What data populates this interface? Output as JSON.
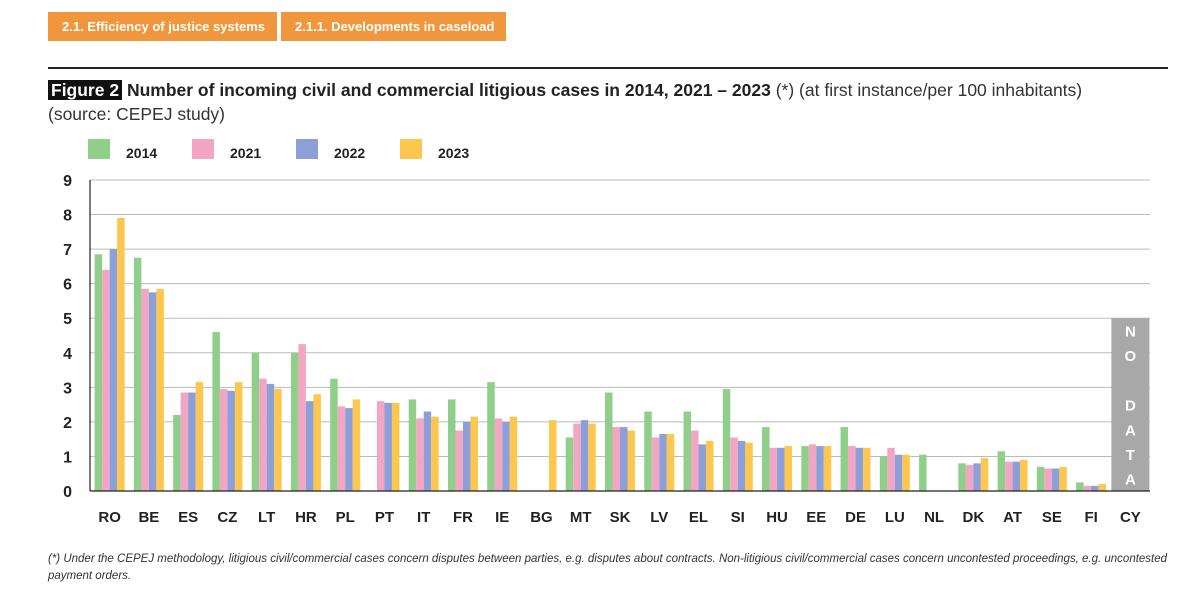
{
  "header": {
    "tabs": [
      {
        "label": "2.1. Efficiency of justice systems"
      },
      {
        "label": "2.1.1. Developments in caseload"
      }
    ]
  },
  "figure": {
    "tag": "Figure 2",
    "title_bold": "Number of incoming civil and commercial litigious cases in 2014, 2021 – 2023",
    "title_rest": "(*) (at first instance/per 100 inhabitants) (source: CEPEJ study)"
  },
  "footnote": "(*) Under the CEPEJ methodology, litigious civil/commercial cases concern disputes between parties, e.g. disputes about contracts. Non-litigious civil/commercial cases concern uncontested proceedings, e.g. uncontested payment orders.",
  "colors": {
    "s2014": "#8fcf8a",
    "s2021": "#f2a6c4",
    "s2022": "#8c9fd8",
    "s2023": "#fcc74e",
    "nodata": "#a8a8a8",
    "grid": "#bbbbbb",
    "axis": "#222222"
  },
  "chart_data": {
    "type": "bar",
    "title": "Number of incoming civil and commercial litigious cases in 2014, 2021 – 2023",
    "xlabel": "",
    "ylabel": "",
    "ylim": [
      0,
      9
    ],
    "yticks": [
      0,
      1,
      2,
      3,
      4,
      5,
      6,
      7,
      8,
      9
    ],
    "grid": true,
    "legend_position": "top-left",
    "categories": [
      "RO",
      "BE",
      "ES",
      "CZ",
      "LT",
      "HR",
      "PL",
      "PT",
      "IT",
      "FR",
      "IE",
      "BG",
      "MT",
      "SK",
      "LV",
      "EL",
      "SI",
      "HU",
      "EE",
      "DE",
      "LU",
      "NL",
      "DK",
      "AT",
      "SE",
      "FI",
      "CY"
    ],
    "series": [
      {
        "name": "2014",
        "color_key": "s2014",
        "values": [
          6.85,
          6.75,
          2.2,
          4.6,
          4.0,
          4.0,
          3.25,
          null,
          2.65,
          2.65,
          3.15,
          null,
          1.55,
          2.85,
          2.3,
          2.3,
          2.95,
          1.85,
          1.3,
          1.85,
          1.0,
          1.05,
          0.8,
          1.15,
          0.7,
          0.25,
          null
        ]
      },
      {
        "name": "2021",
        "color_key": "s2021",
        "values": [
          6.4,
          5.85,
          2.85,
          2.95,
          3.25,
          4.25,
          2.45,
          2.6,
          2.1,
          1.75,
          2.1,
          null,
          1.95,
          1.85,
          1.55,
          1.75,
          1.55,
          1.25,
          1.35,
          1.3,
          1.25,
          null,
          0.75,
          0.85,
          0.65,
          0.15,
          null
        ]
      },
      {
        "name": "2022",
        "color_key": "s2022",
        "values": [
          7.0,
          5.75,
          2.85,
          2.9,
          3.1,
          2.6,
          2.4,
          2.55,
          2.3,
          2.0,
          2.0,
          null,
          2.05,
          1.85,
          1.65,
          1.35,
          1.45,
          1.25,
          1.3,
          1.25,
          1.05,
          null,
          0.8,
          0.85,
          0.65,
          0.15,
          null
        ]
      },
      {
        "name": "2023",
        "color_key": "s2023",
        "values": [
          7.9,
          5.85,
          3.15,
          3.15,
          2.95,
          2.8,
          2.65,
          2.55,
          2.15,
          2.15,
          2.15,
          2.05,
          1.95,
          1.75,
          1.65,
          1.45,
          1.4,
          1.3,
          1.3,
          1.25,
          1.05,
          null,
          0.95,
          0.9,
          0.7,
          0.2,
          null
        ]
      }
    ],
    "annotations": [
      {
        "category": "CY",
        "text": "NO DATA",
        "letters": [
          "N",
          "O",
          "",
          "D",
          "A",
          "T",
          "A"
        ]
      }
    ]
  }
}
